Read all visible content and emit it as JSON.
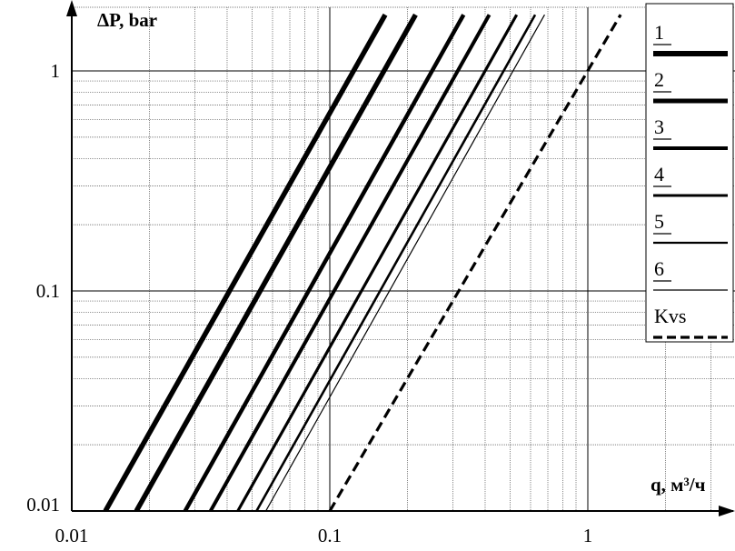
{
  "chart_data": {
    "type": "line",
    "xscale": "log",
    "yscale": "log",
    "xlim": [
      0.01,
      3
    ],
    "ylim": [
      0.01,
      2
    ],
    "x_ticks": [
      0.01,
      0.1,
      1
    ],
    "x_tick_labels": [
      "0.01",
      "0.1",
      "1"
    ],
    "y_ticks": [
      0.01,
      0.1,
      1
    ],
    "y_tick_labels": [
      "0.01",
      "0.1",
      "1"
    ],
    "xlabel": "q, м³/ч",
    "ylabel": "ΔP, bar",
    "grid": true,
    "legend_position": "top-right",
    "series": [
      {
        "name": "1",
        "style": "solid",
        "weight": 5.5,
        "x": [
          0.0135,
          0.164
        ],
        "y": [
          0.01,
          1.8
        ]
      },
      {
        "name": "1",
        "style": "solid",
        "weight": 5.5,
        "x": [
          0.0178,
          0.215
        ],
        "y": [
          0.01,
          1.8
        ]
      },
      {
        "name": "2",
        "style": "solid",
        "weight": 4.5,
        "x": [
          0.0275,
          0.33
        ],
        "y": [
          0.01,
          1.8
        ]
      },
      {
        "name": "3",
        "style": "solid",
        "weight": 4.0,
        "x": [
          0.0345,
          0.415
        ],
        "y": [
          0.01,
          1.8
        ]
      },
      {
        "name": "4",
        "style": "solid",
        "weight": 3.2,
        "x": [
          0.044,
          0.53
        ],
        "y": [
          0.01,
          1.8
        ]
      },
      {
        "name": "5",
        "style": "solid",
        "weight": 2.6,
        "x": [
          0.052,
          0.625
        ],
        "y": [
          0.01,
          1.8
        ]
      },
      {
        "name": "6",
        "style": "solid",
        "weight": 1.2,
        "x": [
          0.0565,
          0.68
        ],
        "y": [
          0.01,
          1.8
        ]
      },
      {
        "name": "Kvs",
        "style": "dashed",
        "weight": 3.2,
        "x": [
          0.1,
          1.34
        ],
        "y": [
          0.01,
          1.8
        ]
      }
    ],
    "legend": [
      {
        "label": "1",
        "style": "solid",
        "weight": 6
      },
      {
        "label": "2",
        "style": "solid",
        "weight": 5
      },
      {
        "label": "3",
        "style": "solid",
        "weight": 4
      },
      {
        "label": "4",
        "style": "solid",
        "weight": 3
      },
      {
        "label": "5",
        "style": "solid",
        "weight": 2.2
      },
      {
        "label": "6",
        "style": "solid",
        "weight": 1.3
      },
      {
        "label": "Kvs",
        "style": "dashed",
        "weight": 3.2
      }
    ]
  }
}
